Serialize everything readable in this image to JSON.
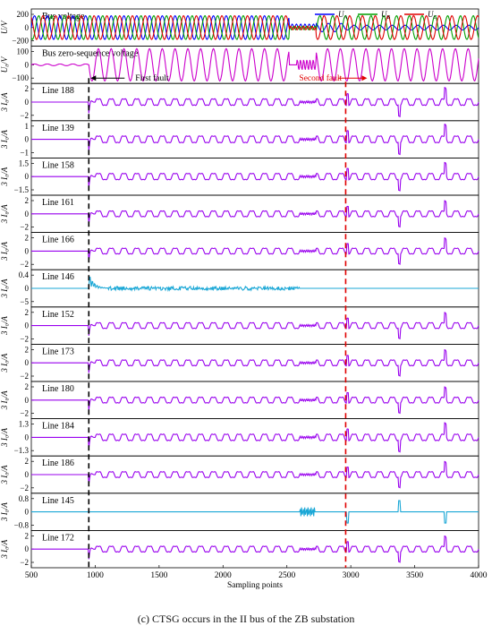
{
  "chart_data": {
    "type": "line",
    "caption": "(c) CTSG occurs in the II bus of the ZB substation",
    "xlabel": "Sampling points",
    "xlim": [
      500,
      4000
    ],
    "xticks": [
      500,
      1000,
      1500,
      2000,
      2500,
      3000,
      3500,
      4000
    ],
    "events": [
      {
        "label": "First fault",
        "x": 950,
        "color": "#000000"
      },
      {
        "label": "Second fault",
        "x": 2960,
        "color": "#e00000"
      }
    ],
    "panels": [
      {
        "title": "Bus voltage",
        "ylabel": "U/V",
        "yticks": [
          "200",
          "0",
          "−200"
        ],
        "kind": "three_phase",
        "amp": 140,
        "ylim": [
          -220,
          220
        ],
        "legend": [
          {
            "name": "U_A",
            "sub": "A",
            "color": "#0000ff"
          },
          {
            "name": "U_B",
            "sub": "B",
            "color": "#00a000"
          },
          {
            "name": "U_C",
            "sub": "C",
            "color": "#e00000"
          }
        ]
      },
      {
        "title": "Bus zero-sequence voltage",
        "ylabel": "U₀/V",
        "yticks": [
          "100",
          "0",
          "−100"
        ],
        "kind": "zero_seq",
        "amp": 95,
        "ylim": [
          -110,
          110
        ],
        "color": "#cc00cc"
      },
      {
        "title": "Line 188",
        "ylabel": "3 I₀/A",
        "yticks": [
          "2",
          "0",
          "−2"
        ],
        "kind": "faulted",
        "amp": 0.5,
        "ylim": [
          -2.5,
          2.5
        ],
        "color": "#9900ee"
      },
      {
        "title": "Line 139",
        "ylabel": "3 I₀/A",
        "yticks": [
          "1",
          "0",
          "−1"
        ],
        "kind": "faulted",
        "amp": 0.25,
        "ylim": [
          -1.2,
          1.2
        ],
        "color": "#9900ee"
      },
      {
        "title": "Line 158",
        "ylabel": "3 I₀/A",
        "yticks": [
          "1.5",
          "0",
          "−1.5"
        ],
        "kind": "faulted",
        "amp": 0.35,
        "ylim": [
          -1.8,
          1.8
        ],
        "color": "#9900ee"
      },
      {
        "title": "Line 161",
        "ylabel": "3 I₀/A",
        "yticks": [
          "2",
          "0",
          "−2"
        ],
        "kind": "faulted",
        "amp": 0.45,
        "ylim": [
          -2.5,
          2.5
        ],
        "color": "#9900ee"
      },
      {
        "title": "Line 166",
        "ylabel": "3 I₀/A",
        "yticks": [
          "2",
          "0",
          "−2"
        ],
        "kind": "faulted",
        "amp": 0.45,
        "ylim": [
          -2.5,
          2.5
        ],
        "color": "#9900ee"
      },
      {
        "title": "Line 146",
        "ylabel": "3 I₀/A",
        "yticks": [
          "0.4",
          "0",
          "−5"
        ],
        "kind": "line146",
        "amp": 0,
        "ylim": [
          -1,
          1
        ],
        "color": "#1aa7d6"
      },
      {
        "title": "Line 152",
        "ylabel": "3 I₀/A",
        "yticks": [
          "2",
          "0",
          "−2"
        ],
        "kind": "faulted",
        "amp": 0.45,
        "ylim": [
          -2.5,
          2.5
        ],
        "color": "#9900ee"
      },
      {
        "title": "Line 173",
        "ylabel": "3 I₀/A",
        "yticks": [
          "2",
          "0",
          "−2"
        ],
        "kind": "faulted",
        "amp": 0.45,
        "ylim": [
          -2.5,
          2.5
        ],
        "color": "#9900ee"
      },
      {
        "title": "Line 180",
        "ylabel": "3 I₀/A",
        "yticks": [
          "2",
          "0",
          "−2"
        ],
        "kind": "faulted",
        "amp": 0.45,
        "ylim": [
          -2.5,
          2.5
        ],
        "color": "#9900ee"
      },
      {
        "title": "Line 184",
        "ylabel": "3 I₀/A",
        "yticks": [
          "1.3",
          "0",
          "−1.3"
        ],
        "kind": "faulted",
        "amp": 0.3,
        "ylim": [
          -1.5,
          1.5
        ],
        "color": "#9900ee"
      },
      {
        "title": "Line 186",
        "ylabel": "3 I₀/A",
        "yticks": [
          "2",
          "0",
          "−2"
        ],
        "kind": "faulted",
        "amp": 0.45,
        "ylim": [
          -2.5,
          2.5
        ],
        "color": "#9900ee"
      },
      {
        "title": "Line 145",
        "ylabel": "3 I₀/A",
        "yticks": [
          "0.8",
          "0",
          "−0.8"
        ],
        "kind": "line145",
        "amp": 0,
        "ylim": [
          -1,
          1
        ],
        "color": "#1aa7d6"
      },
      {
        "title": "Line 172",
        "ylabel": "3 I₀/A",
        "yticks": [
          "2",
          "0",
          "−2"
        ],
        "kind": "faulted",
        "amp": 0.45,
        "ylim": [
          -2.5,
          2.5
        ],
        "color": "#9900ee"
      }
    ]
  }
}
